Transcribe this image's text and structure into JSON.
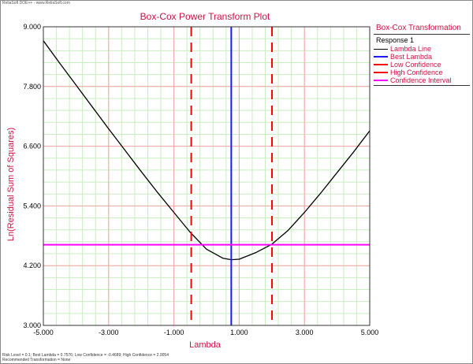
{
  "window": {
    "brand": "ReliaSoft DOE++ - www.ReliaSoft.com",
    "footer_line1": "Risk Level = 0.1; Best Lambda = 0.7576; Low Confidence = -0.4689; High Confidence = 2.0054",
    "footer_line2": "Recommended Transformation = None"
  },
  "chart_data": {
    "type": "line",
    "title": "Box-Cox Power Transform Plot",
    "xlabel": "Lambda",
    "ylabel": "Ln(Residual Sum of Squares)",
    "xlim": [
      -5,
      5
    ],
    "ylim": [
      3,
      9
    ],
    "x_ticks": [
      "-5.000",
      "-3.000",
      "-1.000",
      "1.000",
      "3.000",
      "5.000"
    ],
    "x_tick_values": [
      -5,
      -3,
      -1,
      1,
      3,
      5
    ],
    "y_ticks": [
      "3.000",
      "4.200",
      "5.400",
      "6.600",
      "7.800",
      "9.000"
    ],
    "y_tick_values": [
      3,
      4.2,
      5.4,
      6.6,
      7.8,
      9
    ],
    "grid": true,
    "legend_position": "right",
    "legend_title": "Box-Cox Transformation",
    "legend_group": "Response 1",
    "series": [
      {
        "name": "Lambda Line",
        "style": "solid",
        "color": "#000000",
        "x": [
          -5,
          -4.5,
          -4,
          -3.5,
          -3,
          -2.5,
          -2,
          -1.5,
          -1,
          -0.5,
          0,
          0.5,
          0.7576,
          1,
          1.5,
          2,
          2.5,
          3,
          3.5,
          4,
          4.5,
          5
        ],
        "y": [
          8.72,
          8.27,
          7.83,
          7.39,
          6.95,
          6.52,
          6.09,
          5.67,
          5.27,
          4.87,
          4.53,
          4.35,
          4.32,
          4.33,
          4.46,
          4.63,
          4.91,
          5.27,
          5.66,
          6.07,
          6.48,
          6.91
        ]
      },
      {
        "name": "Best Lambda",
        "style": "solid",
        "color": "#1a1aff",
        "x_value": 0.7576
      },
      {
        "name": "Low Confidence",
        "style": "dashed",
        "color": "#ff0000",
        "x_value": -0.4689
      },
      {
        "name": "High Confidence",
        "style": "dashed",
        "color": "#ff0000",
        "x_value": 2.0054
      },
      {
        "name": "Confidence Interval",
        "style": "solid",
        "color": "#ff00ff",
        "y_value": 4.62
      }
    ],
    "colors": {
      "major_grid": "#f4a4a4",
      "minor_grid": "#c8efc0",
      "text_accent": "#cc1144"
    }
  }
}
